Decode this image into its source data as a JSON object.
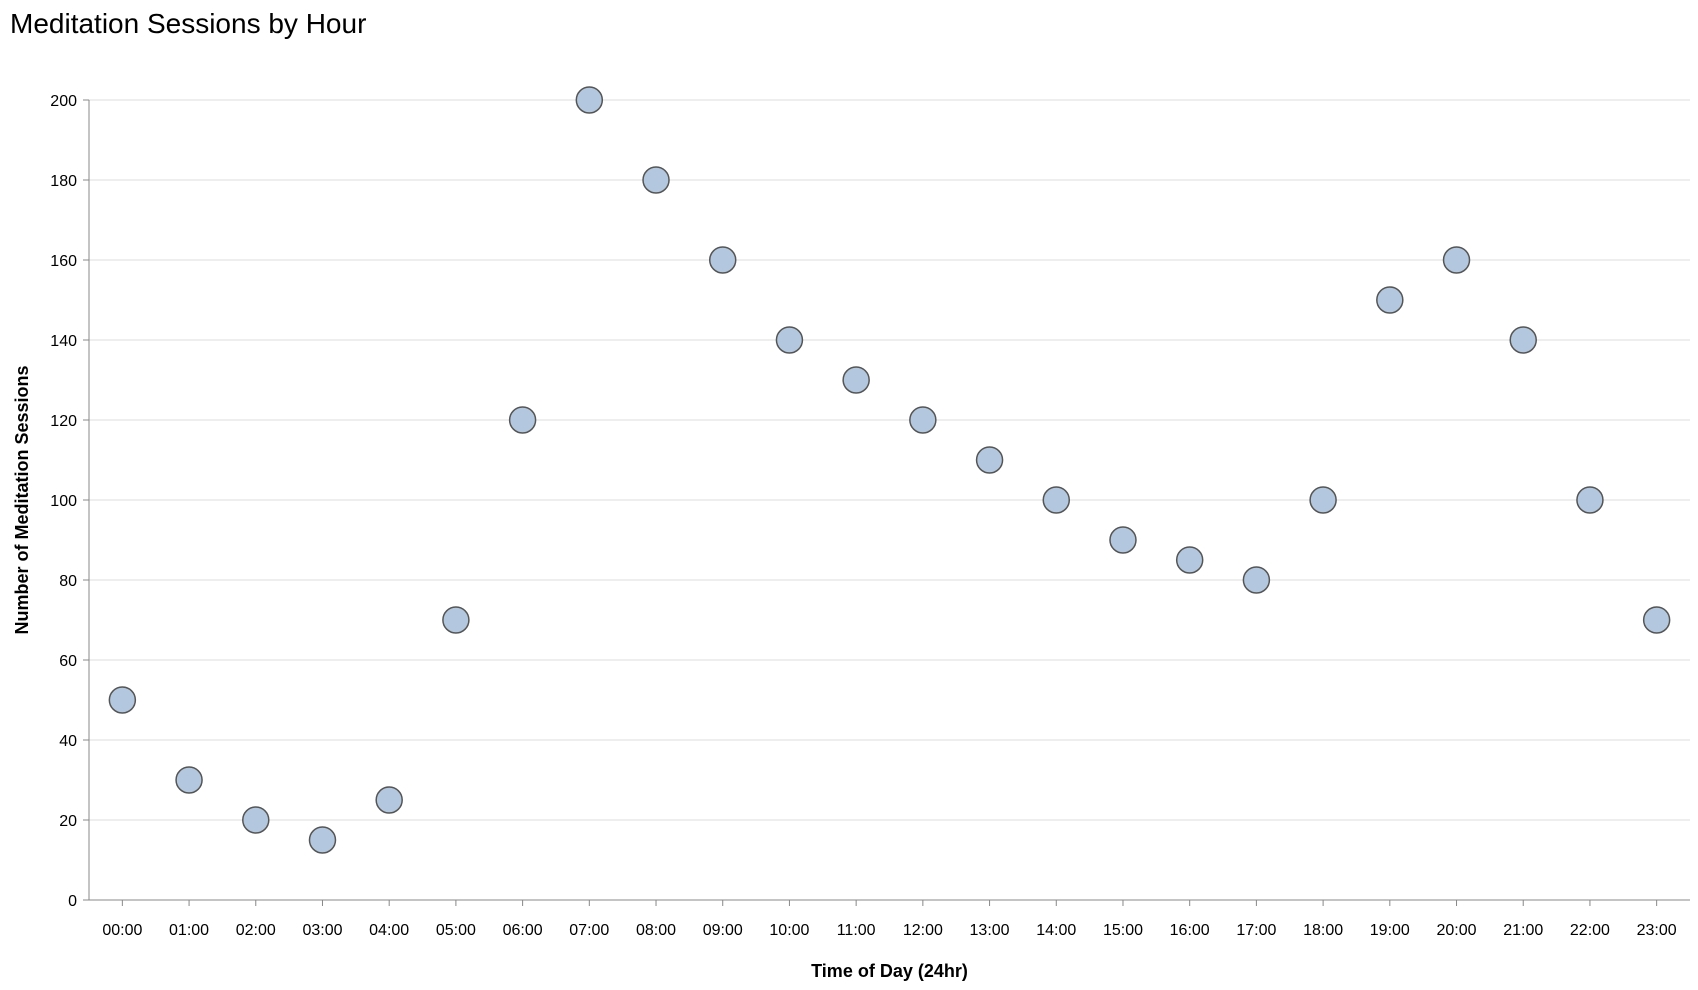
{
  "chart_data": {
    "type": "scatter",
    "title": "Meditation Sessions by Hour",
    "xlabel": "Time of Day (24hr)",
    "ylabel": "Number of Meditation Sessions",
    "x": [
      "00:00",
      "01:00",
      "02:00",
      "03:00",
      "04:00",
      "05:00",
      "06:00",
      "07:00",
      "08:00",
      "09:00",
      "10:00",
      "11:00",
      "12:00",
      "13:00",
      "14:00",
      "15:00",
      "16:00",
      "17:00",
      "18:00",
      "19:00",
      "20:00",
      "21:00",
      "22:00",
      "23:00"
    ],
    "y": [
      50,
      30,
      20,
      15,
      25,
      70,
      120,
      200,
      180,
      160,
      140,
      130,
      120,
      110,
      100,
      90,
      85,
      80,
      100,
      150,
      160,
      140,
      100,
      70
    ],
    "ylim": [
      0,
      200
    ],
    "yticks": [
      0,
      20,
      40,
      60,
      80,
      100,
      120,
      140,
      160,
      180,
      200
    ],
    "grid": true,
    "colors": {
      "point_fill": "#b3c8de",
      "point_stroke": "#555555",
      "grid": "#dddddd",
      "axis": "#888888"
    }
  }
}
